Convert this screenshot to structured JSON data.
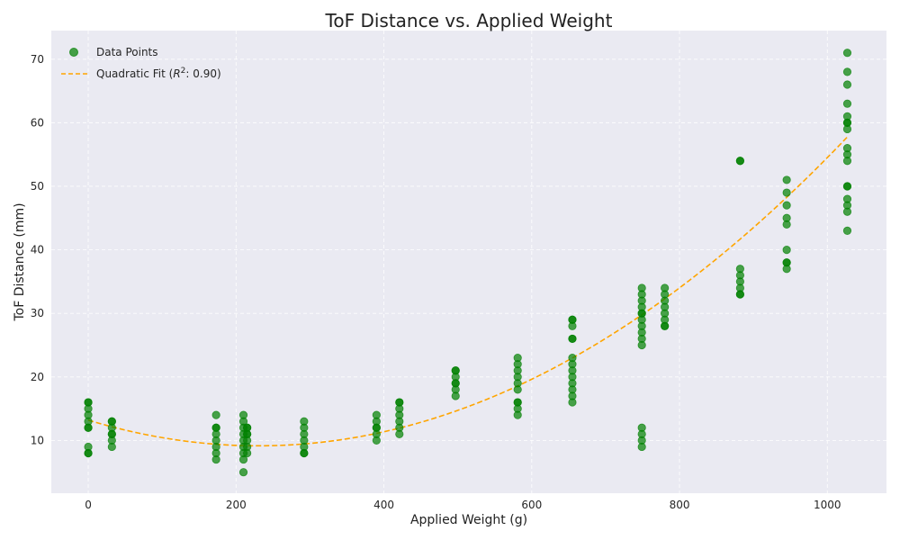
{
  "chart_data": {
    "type": "scatter",
    "title": "ToF Distance vs. Applied Weight",
    "xlabel": "Applied Weight (g)",
    "ylabel": "ToF Distance (mm)",
    "xlim": [
      -50,
      1080
    ],
    "ylim": [
      1.7,
      74.5
    ],
    "xticks": [
      0,
      200,
      400,
      600,
      800,
      1000
    ],
    "yticks": [
      10,
      20,
      30,
      40,
      50,
      60,
      70
    ],
    "grid": true,
    "background": "#eaeaf2",
    "legend": {
      "placement": "top-left",
      "entries": [
        {
          "label": "Data Points",
          "kind": "marker"
        },
        {
          "label": "Quadratic Fit ($R^2$: 0.90)",
          "label_prefix": "Quadratic Fit (",
          "label_r": "R",
          "label_sup": "2",
          "label_suffix": ": 0.90)",
          "kind": "line"
        }
      ]
    },
    "series": [
      {
        "name": "Data Points",
        "color": "#008000",
        "points": [
          [
            0,
            16
          ],
          [
            0,
            15
          ],
          [
            0,
            14
          ],
          [
            0,
            13
          ],
          [
            0,
            12
          ],
          [
            0,
            9
          ],
          [
            0,
            8
          ],
          [
            0,
            16
          ],
          [
            0,
            12
          ],
          [
            0,
            8
          ],
          [
            32,
            13
          ],
          [
            32,
            12
          ],
          [
            32,
            11
          ],
          [
            32,
            10
          ],
          [
            32,
            9
          ],
          [
            32,
            13
          ],
          [
            32,
            11
          ],
          [
            173,
            14
          ],
          [
            173,
            12
          ],
          [
            173,
            11
          ],
          [
            173,
            10
          ],
          [
            173,
            9
          ],
          [
            173,
            8
          ],
          [
            173,
            7
          ],
          [
            173,
            12
          ],
          [
            210,
            14
          ],
          [
            210,
            13
          ],
          [
            210,
            12
          ],
          [
            210,
            11
          ],
          [
            210,
            10
          ],
          [
            210,
            9
          ],
          [
            210,
            8
          ],
          [
            210,
            7
          ],
          [
            210,
            5
          ],
          [
            215,
            12
          ],
          [
            215,
            11
          ],
          [
            215,
            10
          ],
          [
            215,
            9
          ],
          [
            215,
            8
          ],
          [
            215,
            12
          ],
          [
            215,
            11
          ],
          [
            292,
            13
          ],
          [
            292,
            12
          ],
          [
            292,
            11
          ],
          [
            292,
            10
          ],
          [
            292,
            9
          ],
          [
            292,
            8
          ],
          [
            292,
            8
          ],
          [
            390,
            14
          ],
          [
            390,
            13
          ],
          [
            390,
            12
          ],
          [
            390,
            11
          ],
          [
            390,
            10
          ],
          [
            390,
            12
          ],
          [
            421,
            16
          ],
          [
            421,
            15
          ],
          [
            421,
            14
          ],
          [
            421,
            13
          ],
          [
            421,
            12
          ],
          [
            421,
            11
          ],
          [
            421,
            16
          ],
          [
            497,
            21
          ],
          [
            497,
            20
          ],
          [
            497,
            19
          ],
          [
            497,
            18
          ],
          [
            497,
            17
          ],
          [
            497,
            21
          ],
          [
            497,
            19
          ],
          [
            581,
            23
          ],
          [
            581,
            22
          ],
          [
            581,
            21
          ],
          [
            581,
            20
          ],
          [
            581,
            19
          ],
          [
            581,
            18
          ],
          [
            581,
            16
          ],
          [
            581,
            15
          ],
          [
            581,
            14
          ],
          [
            581,
            16
          ],
          [
            655,
            29
          ],
          [
            655,
            28
          ],
          [
            655,
            26
          ],
          [
            655,
            23
          ],
          [
            655,
            22
          ],
          [
            655,
            21
          ],
          [
            655,
            20
          ],
          [
            655,
            19
          ],
          [
            655,
            18
          ],
          [
            655,
            17
          ],
          [
            655,
            16
          ],
          [
            655,
            29
          ],
          [
            655,
            26
          ],
          [
            749,
            34
          ],
          [
            749,
            33
          ],
          [
            749,
            32
          ],
          [
            749,
            31
          ],
          [
            749,
            30
          ],
          [
            749,
            29
          ],
          [
            749,
            28
          ],
          [
            749,
            27
          ],
          [
            749,
            26
          ],
          [
            749,
            25
          ],
          [
            749,
            12
          ],
          [
            749,
            11
          ],
          [
            749,
            10
          ],
          [
            749,
            9
          ],
          [
            749,
            30
          ],
          [
            780,
            34
          ],
          [
            780,
            33
          ],
          [
            780,
            32
          ],
          [
            780,
            31
          ],
          [
            780,
            30
          ],
          [
            780,
            29
          ],
          [
            780,
            28
          ],
          [
            780,
            28
          ],
          [
            882,
            54
          ],
          [
            882,
            37
          ],
          [
            882,
            36
          ],
          [
            882,
            35
          ],
          [
            882,
            34
          ],
          [
            882,
            33
          ],
          [
            882,
            54
          ],
          [
            882,
            33
          ],
          [
            945,
            51
          ],
          [
            945,
            49
          ],
          [
            945,
            47
          ],
          [
            945,
            45
          ],
          [
            945,
            44
          ],
          [
            945,
            40
          ],
          [
            945,
            38
          ],
          [
            945,
            37
          ],
          [
            945,
            38
          ],
          [
            1027,
            71
          ],
          [
            1027,
            68
          ],
          [
            1027,
            66
          ],
          [
            1027,
            63
          ],
          [
            1027,
            61
          ],
          [
            1027,
            60
          ],
          [
            1027,
            59
          ],
          [
            1027,
            56
          ],
          [
            1027,
            55
          ],
          [
            1027,
            54
          ],
          [
            1027,
            50
          ],
          [
            1027,
            48
          ],
          [
            1027,
            47
          ],
          [
            1027,
            46
          ],
          [
            1027,
            43
          ],
          [
            1027,
            60
          ],
          [
            1027,
            50
          ]
        ]
      },
      {
        "name": "Quadratic Fit ($R^2$: 0.90)",
        "color": "#ffa500",
        "style": "dashed",
        "coefficients": {
          "a": 7.65e-05,
          "b": -0.03518,
          "c": 13.2
        },
        "x_range": [
          0,
          1027
        ]
      }
    ]
  }
}
